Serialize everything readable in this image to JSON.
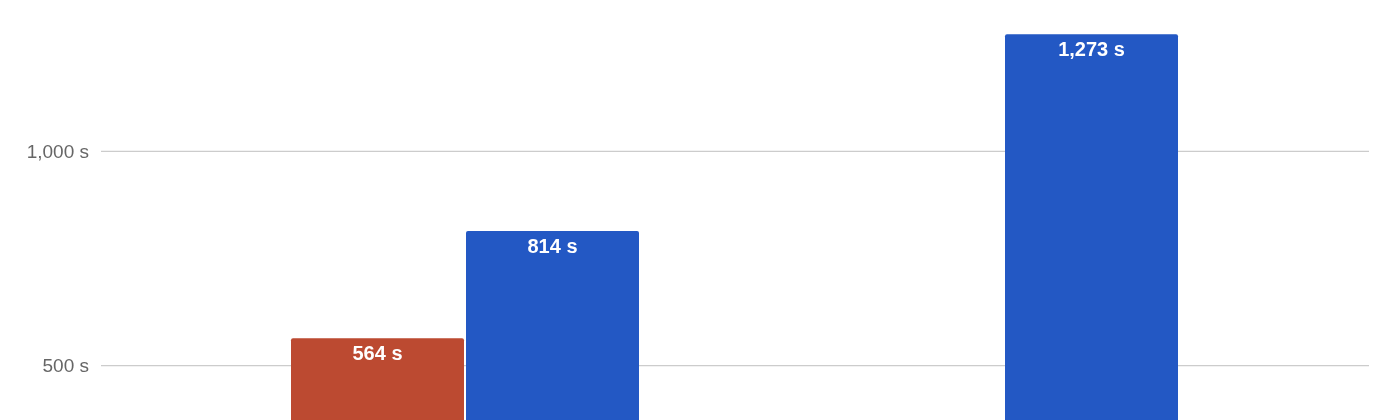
{
  "chart_data": {
    "type": "bar",
    "categories": [
      null,
      null
    ],
    "series": [
      {
        "color": "#bc4a31",
        "values": [
          564,
          null
        ],
        "value_labels": [
          "564 s",
          null
        ]
      },
      {
        "color": "#2358c4",
        "values": [
          814,
          1273
        ],
        "value_labels": [
          "814 s",
          "1,273 s"
        ]
      }
    ],
    "ylim": [
      373,
      1353
    ],
    "yticks": [
      {
        "value": 500,
        "label": "500 s"
      },
      {
        "value": 1000,
        "label": "1,000 s"
      }
    ],
    "grid": "y",
    "tick_labels": "y"
  }
}
